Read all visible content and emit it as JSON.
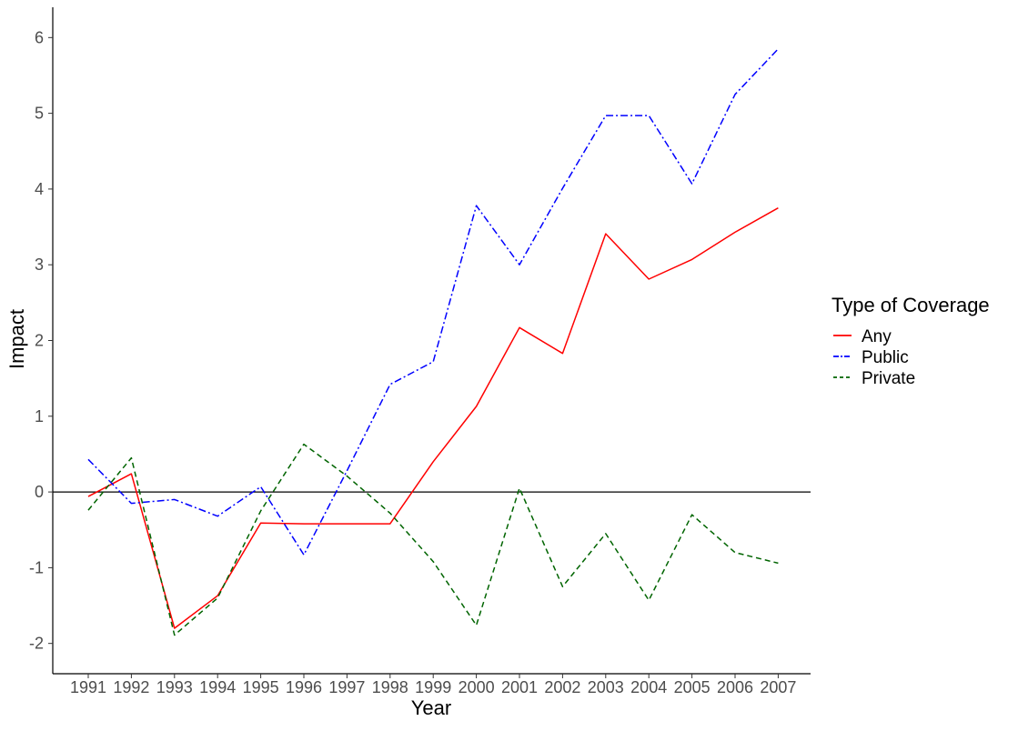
{
  "chart_data": {
    "type": "line",
    "xlabel": "Year",
    "ylabel": "Impact",
    "categories": [
      "1991",
      "1992",
      "1993",
      "1994",
      "1995",
      "1996",
      "1997",
      "1998",
      "1999",
      "2000",
      "2001",
      "2002",
      "2003",
      "2004",
      "2005",
      "2006",
      "2007"
    ],
    "ylim": [
      -2.4,
      6.4
    ],
    "yticks": [
      -2,
      -1,
      0,
      1,
      2,
      3,
      4,
      5,
      6
    ],
    "ytick_labels": [
      "-2",
      "-1",
      "0",
      "1",
      "2",
      "3",
      "4",
      "5",
      "6"
    ],
    "reference_line": {
      "y": 0,
      "color": "#000000"
    },
    "legend": {
      "title": "Type of Coverage",
      "position": "right"
    },
    "grid": false,
    "series": [
      {
        "name": "Any",
        "color": "#ff0000",
        "dash": "solid",
        "values": [
          -0.06,
          0.24,
          -1.8,
          -1.37,
          -0.41,
          -0.42,
          -0.42,
          -0.42,
          0.4,
          1.13,
          2.17,
          1.83,
          3.41,
          2.81,
          3.07,
          3.43,
          3.75
        ]
      },
      {
        "name": "Public",
        "color": "#0000ff",
        "dash": "dashdot",
        "values": [
          0.43,
          -0.15,
          -0.1,
          -0.32,
          0.07,
          -0.83,
          0.28,
          1.42,
          1.72,
          3.78,
          3.0,
          4.01,
          4.97,
          4.97,
          4.07,
          5.25,
          5.85
        ]
      },
      {
        "name": "Private",
        "color": "#006400",
        "dash": "dashed",
        "values": [
          -0.24,
          0.45,
          -1.89,
          -1.4,
          -0.25,
          0.63,
          0.21,
          -0.28,
          -0.92,
          -1.76,
          0.05,
          -1.25,
          -0.55,
          -1.43,
          -0.3,
          -0.8,
          -0.94
        ]
      }
    ]
  }
}
